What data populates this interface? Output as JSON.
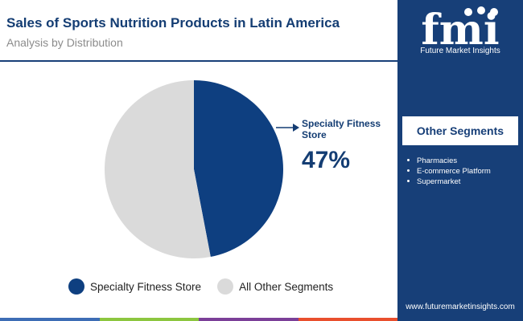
{
  "header": {
    "title": "Sales of Sports Nutrition Products in Latin America",
    "subtitle": "Analysis by Distribution"
  },
  "chart_data": {
    "type": "pie",
    "title": "Sales of Sports Nutrition Products in Latin America",
    "subtitle": "Analysis by Distribution",
    "slices": [
      {
        "label": "Specialty Fitness Store",
        "value": 47,
        "color": "#0e3f80"
      },
      {
        "label": "All Other Segments",
        "value": 53,
        "color": "#dadada"
      }
    ],
    "annotation": {
      "label": "Specialty Fitness Store",
      "value_text": "47%"
    },
    "legend_position": "bottom"
  },
  "sidebar": {
    "brand_name": "Future Market Insights",
    "logo_letters": "fmi",
    "panel_title": "Other Segments",
    "items": [
      "Pharmacies",
      "E-commerce Platform",
      "Supermarket"
    ],
    "website": "www.futuremarketinsights.com"
  },
  "colors": {
    "navy": "#173f78",
    "accent_bar": [
      "#3d6db5",
      "#8cc63f",
      "#7b3f98",
      "#e94f2d"
    ]
  }
}
